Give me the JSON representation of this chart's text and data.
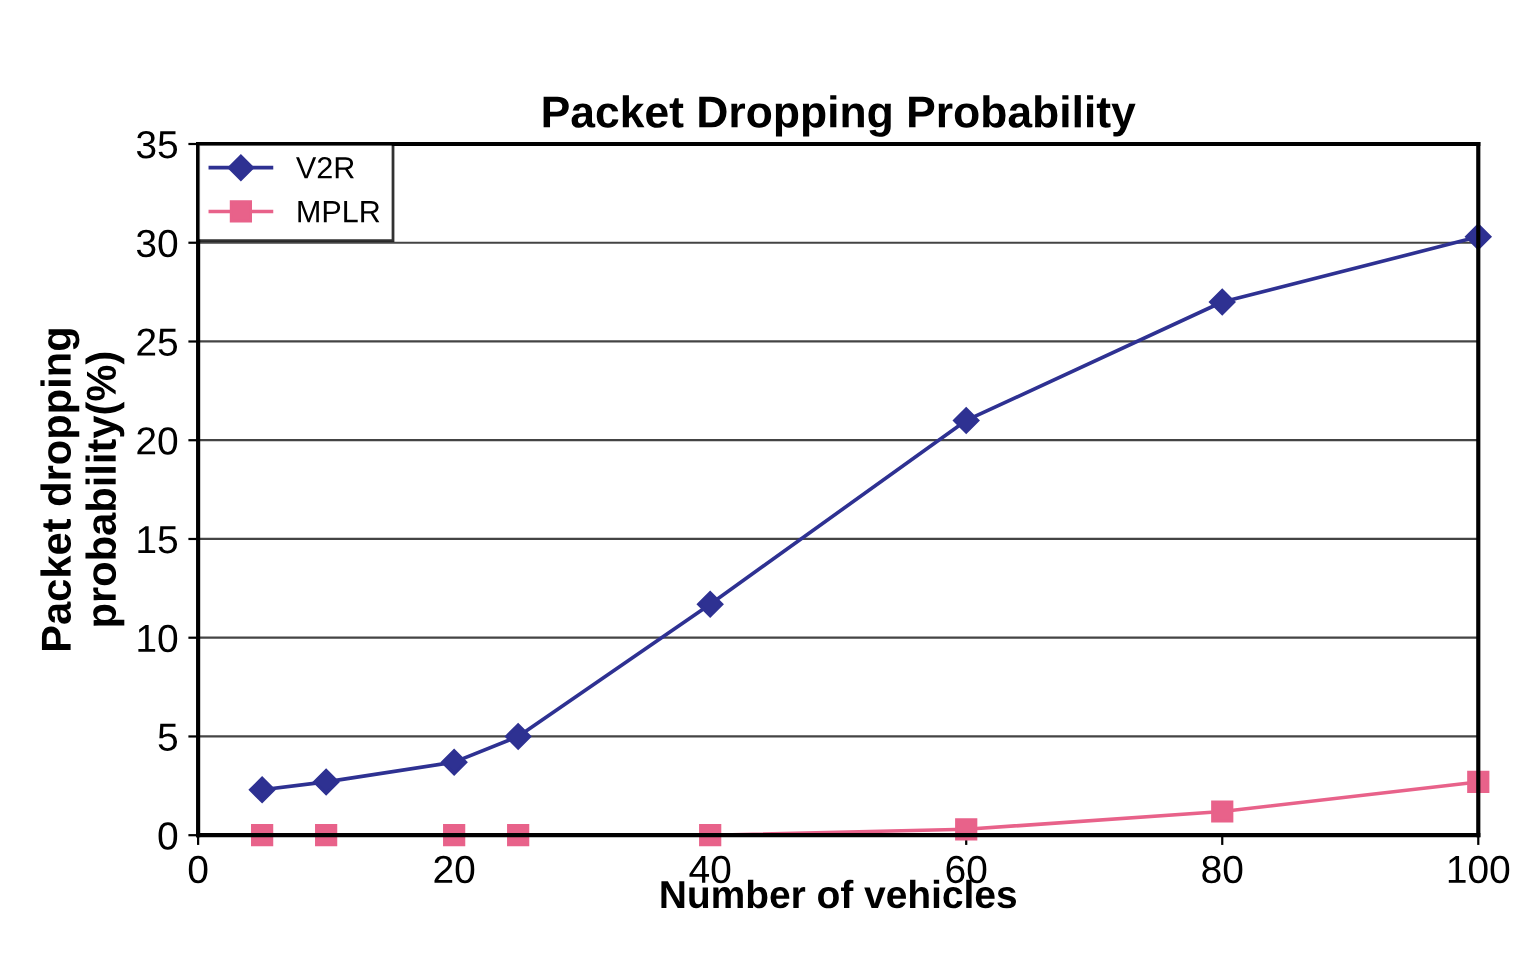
{
  "chart_data": {
    "type": "line",
    "title": "Packet Dropping Probability",
    "xlabel": "Number of vehicles",
    "ylabel": "Packet dropping\nprobability(%)",
    "xlim": [
      0,
      100
    ],
    "xticks": [
      0,
      20,
      40,
      60,
      80,
      100
    ],
    "ylim": [
      0,
      35
    ],
    "yticks": [
      0,
      5,
      10,
      15,
      20,
      25,
      30,
      35
    ],
    "grid": "y",
    "legend": "top left",
    "series": [
      {
        "name": "V2R",
        "color": "#2e3192",
        "marker": "diamond",
        "x": [
          5,
          10,
          20,
          25,
          40,
          60,
          80,
          100
        ],
        "values": [
          2.3,
          2.7,
          3.7,
          5.0,
          11.7,
          21.0,
          27.0,
          30.3
        ]
      },
      {
        "name": "MPLR",
        "color": "#e8628a",
        "marker": "square",
        "x": [
          5,
          10,
          20,
          25,
          40,
          60,
          80,
          100
        ],
        "values": [
          0,
          0,
          0,
          0,
          0,
          0.3,
          1.2,
          2.7
        ]
      }
    ]
  }
}
